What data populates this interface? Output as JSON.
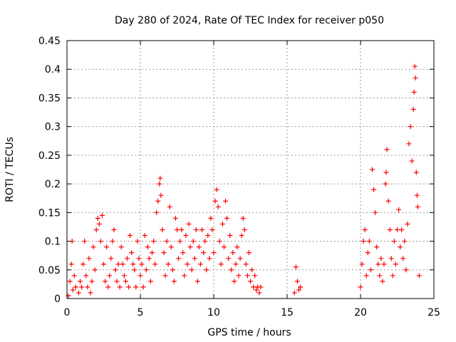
{
  "chart_data": {
    "type": "scatter",
    "title": "Day 280 of 2024, Rate Of TEC Index for receiver p050",
    "xlabel": "GPS time / hours",
    "ylabel": "ROTI / TECUs",
    "xlim": [
      0,
      25
    ],
    "ylim": [
      0,
      0.45
    ],
    "xticks": [
      0,
      5,
      10,
      15,
      20,
      25
    ],
    "yticks": [
      0,
      0.05,
      0.1,
      0.15,
      0.2,
      0.25,
      0.3,
      0.35,
      0.4,
      0.45
    ],
    "xtick_labels": [
      "0",
      "5",
      "10",
      "15",
      "20",
      "25"
    ],
    "ytick_labels": [
      "0",
      "0.05",
      "0.1",
      "0.15",
      "0.2",
      "0.25",
      "0.3",
      "0.35",
      "0.4",
      "0.45"
    ],
    "grid": true,
    "marker": "+",
    "color": "#ff0000",
    "points": [
      [
        0.1,
        0.005
      ],
      [
        0.2,
        0.03
      ],
      [
        0.3,
        0.06
      ],
      [
        0.35,
        0.1
      ],
      [
        0.4,
        0.015
      ],
      [
        0.5,
        0.04
      ],
      [
        0.6,
        0.02
      ],
      [
        0.8,
        0.01
      ],
      [
        0.9,
        0.03
      ],
      [
        1.0,
        0.02
      ],
      [
        1.1,
        0.06
      ],
      [
        1.2,
        0.1
      ],
      [
        1.3,
        0.04
      ],
      [
        1.4,
        0.02
      ],
      [
        1.5,
        0.07
      ],
      [
        1.6,
        0.01
      ],
      [
        1.7,
        0.03
      ],
      [
        1.8,
        0.09
      ],
      [
        1.9,
        0.05
      ],
      [
        2.0,
        0.12
      ],
      [
        2.1,
        0.14
      ],
      [
        2.2,
        0.13
      ],
      [
        2.3,
        0.1
      ],
      [
        2.4,
        0.145
      ],
      [
        2.5,
        0.06
      ],
      [
        2.6,
        0.03
      ],
      [
        2.7,
        0.09
      ],
      [
        2.8,
        0.02
      ],
      [
        2.9,
        0.04
      ],
      [
        3.0,
        0.07
      ],
      [
        3.1,
        0.1
      ],
      [
        3.2,
        0.12
      ],
      [
        3.3,
        0.05
      ],
      [
        3.4,
        0.03
      ],
      [
        3.5,
        0.06
      ],
      [
        3.6,
        0.02
      ],
      [
        3.7,
        0.09
      ],
      [
        3.8,
        0.06
      ],
      [
        3.9,
        0.04
      ],
      [
        4.0,
        0.03
      ],
      [
        4.1,
        0.07
      ],
      [
        4.2,
        0.02
      ],
      [
        4.3,
        0.11
      ],
      [
        4.4,
        0.08
      ],
      [
        4.5,
        0.06
      ],
      [
        4.6,
        0.05
      ],
      [
        4.7,
        0.02
      ],
      [
        4.8,
        0.1
      ],
      [
        4.9,
        0.07
      ],
      [
        5.0,
        0.04
      ],
      [
        5.1,
        0.06
      ],
      [
        5.2,
        0.02
      ],
      [
        5.3,
        0.11
      ],
      [
        5.4,
        0.05
      ],
      [
        5.5,
        0.09
      ],
      [
        5.6,
        0.07
      ],
      [
        5.7,
        0.03
      ],
      [
        5.8,
        0.08
      ],
      [
        5.9,
        0.1
      ],
      [
        6.0,
        0.06
      ],
      [
        6.1,
        0.15
      ],
      [
        6.2,
        0.17
      ],
      [
        6.3,
        0.2
      ],
      [
        6.35,
        0.21
      ],
      [
        6.4,
        0.18
      ],
      [
        6.5,
        0.12
      ],
      [
        6.6,
        0.08
      ],
      [
        6.7,
        0.04
      ],
      [
        6.8,
        0.1
      ],
      [
        6.9,
        0.06
      ],
      [
        7.0,
        0.16
      ],
      [
        7.1,
        0.09
      ],
      [
        7.2,
        0.05
      ],
      [
        7.3,
        0.03
      ],
      [
        7.4,
        0.14
      ],
      [
        7.5,
        0.12
      ],
      [
        7.6,
        0.07
      ],
      [
        7.7,
        0.1
      ],
      [
        7.8,
        0.12
      ],
      [
        7.9,
        0.08
      ],
      [
        8.0,
        0.04
      ],
      [
        8.1,
        0.11
      ],
      [
        8.2,
        0.06
      ],
      [
        8.3,
        0.13
      ],
      [
        8.4,
        0.09
      ],
      [
        8.5,
        0.05
      ],
      [
        8.6,
        0.1
      ],
      [
        8.7,
        0.07
      ],
      [
        8.8,
        0.12
      ],
      [
        8.9,
        0.03
      ],
      [
        9.0,
        0.09
      ],
      [
        9.1,
        0.06
      ],
      [
        9.2,
        0.12
      ],
      [
        9.3,
        0.08
      ],
      [
        9.4,
        0.1
      ],
      [
        9.5,
        0.05
      ],
      [
        9.6,
        0.11
      ],
      [
        9.7,
        0.07
      ],
      [
        9.8,
        0.14
      ],
      [
        9.9,
        0.12
      ],
      [
        10.0,
        0.08
      ],
      [
        10.1,
        0.17
      ],
      [
        10.2,
        0.19
      ],
      [
        10.3,
        0.16
      ],
      [
        10.4,
        0.1
      ],
      [
        10.5,
        0.06
      ],
      [
        10.6,
        0.13
      ],
      [
        10.7,
        0.09
      ],
      [
        10.8,
        0.17
      ],
      [
        10.9,
        0.14
      ],
      [
        11.0,
        0.07
      ],
      [
        11.1,
        0.11
      ],
      [
        11.2,
        0.05
      ],
      [
        11.3,
        0.08
      ],
      [
        11.4,
        0.03
      ],
      [
        11.5,
        0.06
      ],
      [
        11.6,
        0.09
      ],
      [
        11.7,
        0.04
      ],
      [
        11.8,
        0.07
      ],
      [
        11.9,
        0.11
      ],
      [
        12.0,
        0.14
      ],
      [
        12.1,
        0.12
      ],
      [
        12.2,
        0.06
      ],
      [
        12.3,
        0.04
      ],
      [
        12.4,
        0.08
      ],
      [
        12.5,
        0.03
      ],
      [
        12.6,
        0.05
      ],
      [
        12.7,
        0.02
      ],
      [
        12.8,
        0.04
      ],
      [
        12.9,
        0.015
      ],
      [
        13.0,
        0.02
      ],
      [
        13.1,
        0.01
      ],
      [
        13.2,
        0.02
      ],
      [
        15.5,
        0.01
      ],
      [
        15.6,
        0.055
      ],
      [
        15.7,
        0.03
      ],
      [
        15.8,
        0.015
      ],
      [
        15.9,
        0.02
      ],
      [
        20.0,
        0.02
      ],
      [
        20.1,
        0.06
      ],
      [
        20.2,
        0.1
      ],
      [
        20.3,
        0.12
      ],
      [
        20.4,
        0.04
      ],
      [
        20.5,
        0.08
      ],
      [
        20.6,
        0.1
      ],
      [
        20.7,
        0.05
      ],
      [
        20.8,
        0.225
      ],
      [
        20.9,
        0.19
      ],
      [
        21.0,
        0.15
      ],
      [
        21.1,
        0.09
      ],
      [
        21.2,
        0.06
      ],
      [
        21.3,
        0.04
      ],
      [
        21.4,
        0.07
      ],
      [
        21.5,
        0.03
      ],
      [
        21.6,
        0.06
      ],
      [
        21.7,
        0.2
      ],
      [
        21.75,
        0.22
      ],
      [
        21.8,
        0.26
      ],
      [
        21.9,
        0.17
      ],
      [
        22.0,
        0.12
      ],
      [
        22.1,
        0.07
      ],
      [
        22.2,
        0.04
      ],
      [
        22.3,
        0.1
      ],
      [
        22.4,
        0.06
      ],
      [
        22.5,
        0.12
      ],
      [
        22.6,
        0.155
      ],
      [
        22.7,
        0.09
      ],
      [
        22.8,
        0.12
      ],
      [
        22.9,
        0.07
      ],
      [
        23.0,
        0.1
      ],
      [
        23.1,
        0.05
      ],
      [
        23.2,
        0.13
      ],
      [
        23.3,
        0.27
      ],
      [
        23.4,
        0.3
      ],
      [
        23.5,
        0.24
      ],
      [
        23.6,
        0.33
      ],
      [
        23.65,
        0.36
      ],
      [
        23.7,
        0.405
      ],
      [
        23.75,
        0.385
      ],
      [
        23.8,
        0.22
      ],
      [
        23.85,
        0.18
      ],
      [
        23.9,
        0.16
      ],
      [
        24.0,
        0.04
      ]
    ]
  }
}
